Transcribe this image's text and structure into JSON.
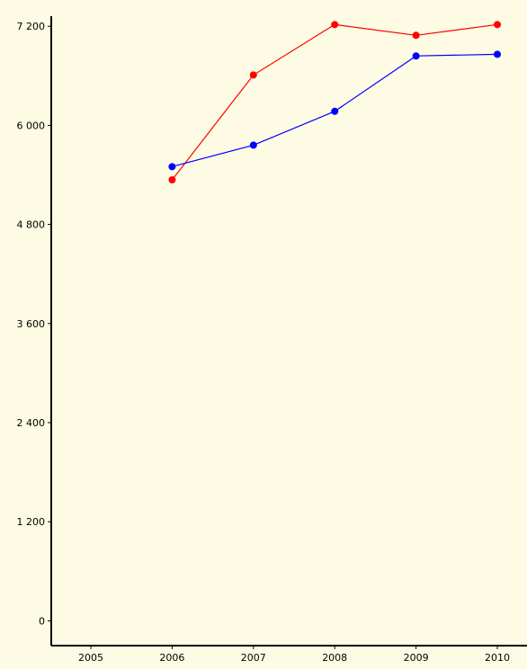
{
  "colors": {
    "background": "#fdfbe3",
    "axis": "#000000",
    "series_red": "#ff0000",
    "series_blue": "#0000ff"
  },
  "chart_data": {
    "type": "line",
    "title": "",
    "xlabel": "",
    "ylabel": "",
    "x": [
      2005,
      2006,
      2007,
      2008,
      2009,
      2010
    ],
    "x_tick_labels": [
      "2005",
      "2006",
      "2007",
      "2008",
      "2009",
      "2010"
    ],
    "y_ticks": [
      0,
      1200,
      2400,
      3600,
      4800,
      6000,
      7200
    ],
    "y_tick_labels": [
      "0",
      "1 200",
      "2 400",
      "3 600",
      "4 800",
      "6 000",
      "7 200"
    ],
    "ylim": [
      -300,
      7300
    ],
    "grid": false,
    "legend": "none",
    "series": [
      {
        "color": "#ff0000",
        "x": [
          2006,
          2007,
          2008,
          2009,
          2010
        ],
        "values": [
          5340,
          6610,
          7220,
          7090,
          7220
        ]
      },
      {
        "color": "#0000ff",
        "x": [
          2006,
          2007,
          2008,
          2009,
          2010
        ],
        "values": [
          5500,
          5760,
          6170,
          6840,
          6860
        ]
      }
    ]
  }
}
